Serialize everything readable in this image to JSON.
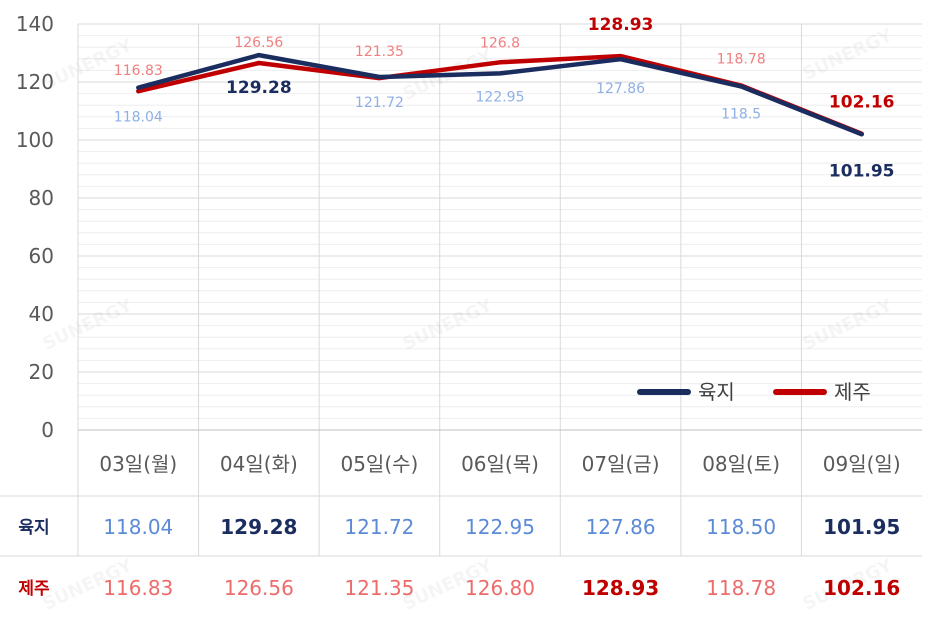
{
  "chart_data": {
    "type": "line",
    "categories": [
      "03일(월)",
      "04일(화)",
      "05일(수)",
      "06일(목)",
      "07일(금)",
      "08일(토)",
      "09일(일)"
    ],
    "ylim": [
      0,
      140
    ],
    "yticks": [
      0,
      20,
      40,
      60,
      80,
      100,
      120,
      140
    ],
    "grid": true,
    "legend_position": "bottom-right",
    "series": [
      {
        "name": "육지",
        "color": "#1b2d5e",
        "light_color": "#8fb0e6",
        "values": [
          118.04,
          129.28,
          121.72,
          122.95,
          127.86,
          118.5,
          101.95
        ],
        "labels": [
          "118.04",
          "129.28",
          "121.72",
          "122.95",
          "127.86",
          "118.5",
          "101.95"
        ],
        "table_values": [
          "118.04",
          "129.28",
          "121.72",
          "122.95",
          "127.86",
          "118.50",
          "101.95"
        ],
        "highlight": [
          false,
          true,
          false,
          false,
          false,
          false,
          true
        ]
      },
      {
        "name": "제주",
        "color": "#c00000",
        "light_color": "#f08080",
        "values": [
          116.83,
          126.56,
          121.35,
          126.8,
          128.93,
          118.78,
          102.16
        ],
        "labels": [
          "116.83",
          "126.56",
          "121.35",
          "126.8",
          "128.93",
          "118.78",
          "102.16"
        ],
        "table_values": [
          "116.83",
          "126.56",
          "121.35",
          "126.80",
          "128.93",
          "118.78",
          "102.16"
        ],
        "highlight": [
          false,
          false,
          false,
          false,
          true,
          false,
          true
        ]
      }
    ]
  },
  "watermark": "SUNERGY"
}
